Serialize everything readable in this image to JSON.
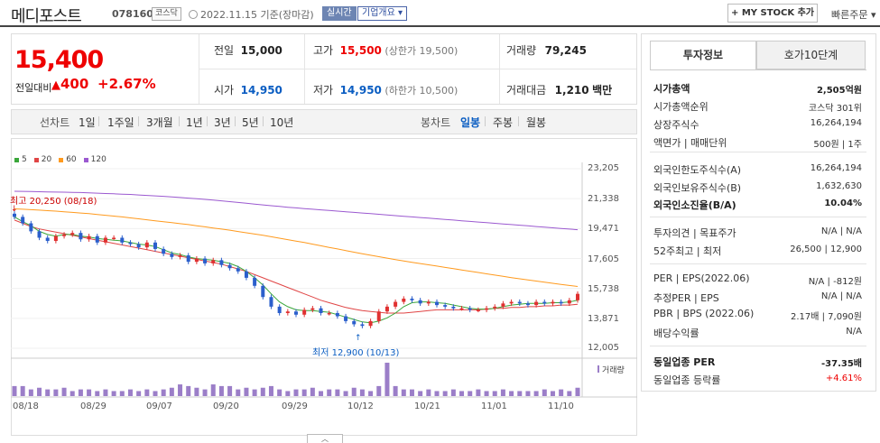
{
  "header": {
    "name": "메디포스트",
    "code": "078160",
    "market": "코스닥",
    "date": "2022.11.15 기준(장마감)",
    "realtime": "실시간",
    "overview": "기업개요 ▾",
    "mystock": "+ MY STOCK 추가",
    "quick_order": "빠른주문 ▾"
  },
  "price": {
    "current": "15,400",
    "change_label": "전일대비",
    "change_amount": "400",
    "change_pct": "+2.67%"
  },
  "quote": {
    "prev_label": "전일",
    "prev": "15,000",
    "high_label": "고가",
    "high": "15,500",
    "high_limit": "(상한가 19,500)",
    "volume_label": "거래량",
    "volume": "79,245",
    "open_label": "시가",
    "open": "14,950",
    "low_label": "저가",
    "low": "14,950",
    "low_limit": "(하한가 10,500)",
    "amount_label": "거래대금",
    "amount": "1,210",
    "amount_unit": "백만"
  },
  "period": {
    "line_chart": "선차트",
    "ranges": [
      "1일",
      "1주일",
      "3개월",
      "1년",
      "3년",
      "5년",
      "10년"
    ],
    "candle_chart": "봉차트",
    "candles": [
      "일봉",
      "주봉",
      "월봉"
    ],
    "active_candle": "일봉"
  },
  "chart_data": {
    "type": "candlestick",
    "legend": [
      "5",
      "20",
      "60",
      "120"
    ],
    "legend_colors": [
      "#3aa63a",
      "#e04545",
      "#ff9a1e",
      "#9b59d0"
    ],
    "y_ticks": [
      "23,205",
      "21,338",
      "19,471",
      "17,605",
      "15,738",
      "13,871",
      "12,005"
    ],
    "x_ticks": [
      "08/18",
      "08/29",
      "09/07",
      "09/20",
      "09/29",
      "10/12",
      "10/21",
      "11/01",
      "11/10"
    ],
    "ylim": [
      12005,
      23205
    ],
    "high_label": "최고 20,250 (08/18)",
    "low_label": "최저 12,900 (10/13)",
    "volume_label": "거래량",
    "closes": [
      20200,
      19800,
      19300,
      18900,
      18700,
      19000,
      19100,
      19200,
      18800,
      19000,
      18600,
      18900,
      18900,
      18600,
      18500,
      18300,
      18600,
      18200,
      17900,
      17700,
      17800,
      17400,
      17600,
      17300,
      17500,
      17200,
      17000,
      16800,
      16400,
      15900,
      15200,
      14600,
      14200,
      14300,
      14100,
      14400,
      14500,
      14200,
      14200,
      14000,
      13700,
      13500,
      13400,
      13700,
      14300,
      14600,
      14900,
      15100,
      15000,
      14800,
      14900,
      14700,
      14600,
      14500,
      14500,
      14400,
      14400,
      14500,
      14600,
      14800,
      14900,
      14800,
      14700,
      14900,
      14800,
      14900,
      14800,
      15000,
      15400
    ],
    "ma5": [
      20200,
      19900,
      19650,
      19300,
      19100,
      19000,
      19100,
      19100,
      19000,
      18950,
      18850,
      18800,
      18750,
      18700,
      18600,
      18500,
      18450,
      18350,
      18150,
      17950,
      17850,
      17700,
      17600,
      17550,
      17500,
      17400,
      17300,
      17100,
      16800,
      16400,
      15950,
      15400,
      14900,
      14600,
      14400,
      14350,
      14350,
      14300,
      14250,
      14100,
      13950,
      13800,
      13650,
      13600,
      13700,
      13900,
      14200,
      14600,
      14850,
      14900,
      14900,
      14850,
      14800,
      14700,
      14600,
      14500,
      14450,
      14450,
      14500,
      14600,
      14700,
      14750,
      14800,
      14800,
      14800,
      14850,
      14850,
      14900,
      15000
    ],
    "ma20": [
      20000,
      19800,
      19600,
      19450,
      19350,
      19250,
      19150,
      19050,
      18950,
      18850,
      18750,
      18650,
      18550,
      18450,
      18350,
      18250,
      18150,
      18050,
      17950,
      17850,
      17750,
      17650,
      17550,
      17450,
      17350,
      17250,
      17100,
      16950,
      16800,
      16600,
      16400,
      16200,
      16000,
      15800,
      15600,
      15400,
      15200,
      15000,
      14850,
      14700,
      14550,
      14450,
      14350,
      14300,
      14250,
      14200,
      14200,
      14200,
      14250,
      14300,
      14350,
      14400,
      14400,
      14400,
      14400,
      14400,
      14400,
      14450,
      14500,
      14500,
      14550,
      14550,
      14600,
      14600,
      14650,
      14650,
      14700,
      14700,
      14750
    ],
    "ma60": [
      20700,
      20680,
      20650,
      20620,
      20590,
      20560,
      20520,
      20480,
      20440,
      20400,
      20350,
      20300,
      20250,
      20200,
      20140,
      20080,
      20020,
      19960,
      19900,
      19840,
      19780,
      19720,
      19650,
      19580,
      19510,
      19440,
      19370,
      19290,
      19210,
      19130,
      19050,
      18960,
      18870,
      18780,
      18690,
      18600,
      18500,
      18400,
      18300,
      18200,
      18100,
      18000,
      17900,
      17810,
      17720,
      17630,
      17540,
      17450,
      17370,
      17290,
      17210,
      17130,
      17050,
      16970,
      16890,
      16810,
      16730,
      16650,
      16570,
      16490,
      16410,
      16340,
      16270,
      16200,
      16130,
      16060,
      15990,
      15920,
      15860
    ],
    "ma120": [
      21800,
      21790,
      21780,
      21770,
      21760,
      21750,
      21740,
      21730,
      21720,
      21700,
      21680,
      21660,
      21640,
      21620,
      21600,
      21570,
      21540,
      21510,
      21480,
      21450,
      21410,
      21370,
      21330,
      21290,
      21250,
      21200,
      21150,
      21100,
      21050,
      21000,
      20950,
      20900,
      20850,
      20800,
      20760,
      20720,
      20680,
      20640,
      20600,
      20560,
      20520,
      20480,
      20440,
      20400,
      20360,
      20320,
      20280,
      20240,
      20200,
      20160,
      20120,
      20080,
      20040,
      20000,
      19960,
      19920,
      19880,
      19840,
      19800,
      19760,
      19720,
      19680,
      19640,
      19600,
      19560,
      19520,
      19480,
      19440,
      19400
    ],
    "volumes": [
      0.3,
      0.3,
      0.2,
      0.25,
      0.2,
      0.2,
      0.25,
      0.15,
      0.2,
      0.2,
      0.15,
      0.2,
      0.15,
      0.15,
      0.2,
      0.15,
      0.2,
      0.15,
      0.2,
      0.25,
      0.35,
      0.3,
      0.25,
      0.2,
      0.35,
      0.3,
      0.3,
      0.2,
      0.25,
      0.2,
      0.25,
      0.3,
      0.2,
      0.15,
      0.2,
      0.2,
      0.25,
      0.15,
      0.2,
      0.2,
      0.15,
      0.25,
      0.2,
      0.15,
      0.3,
      1.0,
      0.3,
      0.2,
      0.2,
      0.15,
      0.2,
      0.15,
      0.15,
      0.2,
      0.15,
      0.15,
      0.2,
      0.15,
      0.15,
      0.2,
      0.15,
      0.15,
      0.15,
      0.15,
      0.2,
      0.15,
      0.2,
      0.15,
      0.25
    ]
  },
  "invest": {
    "tab_active": "투자정보",
    "tab_other": "호가10단계",
    "rows1": [
      {
        "label": "시가총액",
        "value": "2,505억원",
        "bold": true
      },
      {
        "label": "시가총액순위",
        "value": "코스닥 301위"
      },
      {
        "label": "상장주식수",
        "value": "16,264,194"
      },
      {
        "label": "액면가 | 매매단위",
        "value": "500원 | 1주"
      }
    ],
    "rows2": [
      {
        "label": "외국인한도주식수(A)",
        "value": "16,264,194"
      },
      {
        "label": "외국인보유주식수(B)",
        "value": "1,632,630"
      },
      {
        "label": "외국인소진율(B/A)",
        "value": "10.04%",
        "bold": true
      }
    ],
    "rows3": [
      {
        "label": "투자의견 | 목표주가",
        "value": "N/A | N/A"
      },
      {
        "label": "52주최고 | 최저",
        "value": "26,500 | 12,900"
      }
    ],
    "rows4": [
      {
        "label": "PER | EPS(2022.06)",
        "value": "N/A | -812원"
      },
      {
        "label": "추정PER | EPS",
        "value": "N/A | N/A"
      },
      {
        "label": "PBR | BPS (2022.06)",
        "value": "2.17배 | 7,090원"
      },
      {
        "label": "배당수익률",
        "value": "N/A"
      }
    ],
    "rows5": [
      {
        "label": "동일업종 PER",
        "value": "-37.35배",
        "bold": true
      },
      {
        "label": "동일업종 등락률",
        "value": "+4.61%",
        "red": true
      }
    ]
  },
  "toggle": "︿"
}
